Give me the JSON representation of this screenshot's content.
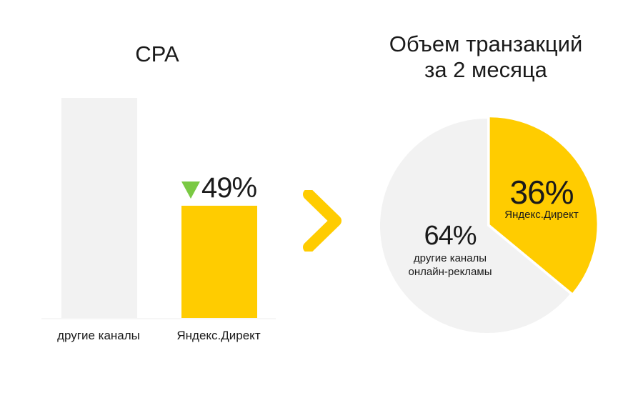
{
  "chart_data": [
    {
      "type": "bar",
      "title": "CPA",
      "categories": [
        "другие каналы",
        "Яндекс.Директ"
      ],
      "values": [
        100,
        51
      ],
      "ylim": [
        0,
        100
      ],
      "bar_colors": [
        "#f2f2f2",
        "#ffcc00"
      ],
      "annotation": {
        "text": "49%",
        "direction": "down",
        "arrow_color": "#7ac943",
        "category": "Яндекс.Директ"
      },
      "grid": false,
      "legend": "none"
    },
    {
      "type": "pie",
      "title": [
        "Объем транзакций",
        "за 2 месяца"
      ],
      "slices": [
        {
          "pct_label": "64%",
          "value": 64,
          "name_lines": [
            "другие каналы",
            "онлайн-рекламы"
          ],
          "color": "#f2f2f2"
        },
        {
          "pct_label": "36%",
          "value": 36,
          "name_lines": [
            "Яндекс.Директ"
          ],
          "color": "#ffcc00",
          "exploded": true
        }
      ],
      "legend": "none"
    }
  ],
  "colors": {
    "accent": "#ffcc00",
    "neutral": "#f2f2f2",
    "decrease": "#7ac943",
    "text": "#1a1a1a"
  },
  "icons": {
    "chevron": "chevron-right-icon",
    "decrease_arrow": "triangle-down-icon"
  }
}
